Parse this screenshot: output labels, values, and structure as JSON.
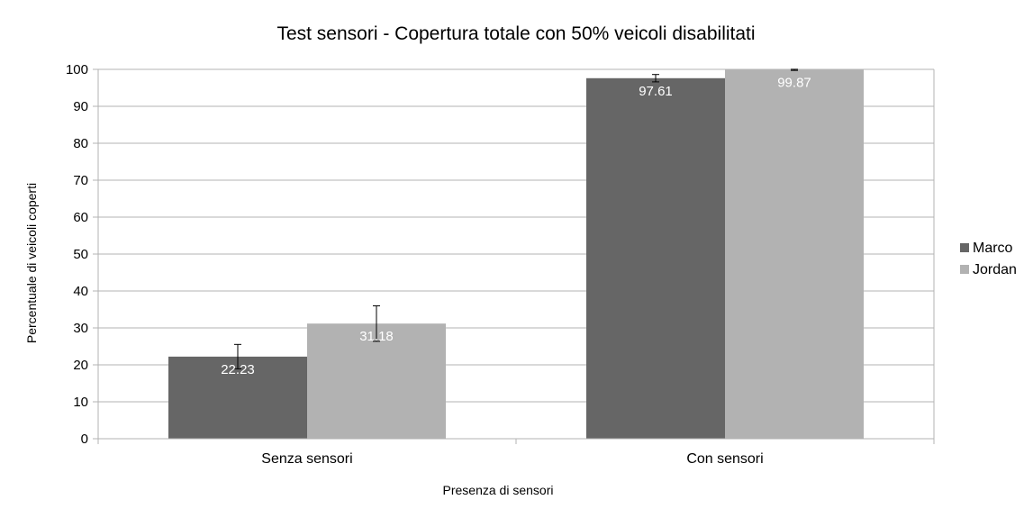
{
  "chart_data": {
    "type": "bar",
    "title": "Test sensori - Copertura totale con 50% veicoli disabilitati",
    "xlabel": "Presenza di sensori",
    "ylabel": "Percentuale di veicoli coperti",
    "categories": [
      "Senza sensori",
      "Con sensori"
    ],
    "ylim": [
      0,
      100
    ],
    "yticks": [
      0,
      10,
      20,
      30,
      40,
      50,
      60,
      70,
      80,
      90,
      100
    ],
    "grid": true,
    "legend_position": "right",
    "series": [
      {
        "name": "Marco",
        "color": "#666666",
        "values": [
          22.23,
          97.61
        ],
        "labels": [
          "22.23",
          "97.61"
        ],
        "error": [
          3.3,
          1.0
        ]
      },
      {
        "name": "Jordan",
        "color": "#b2b2b2",
        "values": [
          31.18,
          99.87
        ],
        "labels": [
          "31.18",
          "99.87"
        ],
        "error": [
          4.8,
          0.15
        ]
      }
    ]
  }
}
